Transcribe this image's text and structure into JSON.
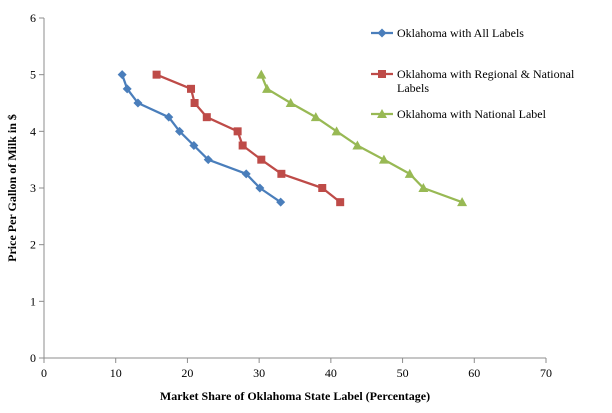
{
  "chart_data": {
    "type": "line",
    "title": "",
    "xlabel": "Market Share of Oklahoma State Label (Percentage)",
    "ylabel": "Price Per Gallon of Milk in $",
    "xlim": [
      0,
      70
    ],
    "ylim": [
      0,
      6
    ],
    "xticks": [
      0,
      10,
      20,
      30,
      40,
      50,
      60,
      70
    ],
    "yticks": [
      0,
      1,
      2,
      3,
      4,
      5,
      6
    ],
    "grid": false,
    "legend_position": "top-right",
    "series": [
      {
        "name": "Oklahoma with All Labels",
        "legend_lines": [
          "Oklahoma with All Labels"
        ],
        "color": "#4a7ebb",
        "marker": "diamond",
        "x": [
          10.9,
          11.6,
          13.1,
          17.4,
          18.9,
          20.9,
          22.9,
          28.2,
          30.1,
          33.0
        ],
        "y": [
          5.0,
          4.75,
          4.5,
          4.25,
          4.0,
          3.75,
          3.5,
          3.25,
          3.0,
          2.75
        ]
      },
      {
        "name": "Oklahoma with Regional & National Labels",
        "legend_lines": [
          "Oklahoma with Regional & National",
          "Labels"
        ],
        "color": "#be4b48",
        "marker": "square",
        "x": [
          15.7,
          20.5,
          21.0,
          22.7,
          27.0,
          27.7,
          30.3,
          33.1,
          38.8,
          41.3
        ],
        "y": [
          5.0,
          4.75,
          4.5,
          4.25,
          4.0,
          3.75,
          3.5,
          3.25,
          3.0,
          2.75
        ]
      },
      {
        "name": "Oklahoma with National Label",
        "legend_lines": [
          "Oklahoma with National Label"
        ],
        "color": "#98b954",
        "marker": "triangle",
        "x": [
          30.3,
          31.1,
          34.4,
          37.9,
          40.8,
          43.7,
          47.4,
          51.0,
          52.9,
          58.3
        ],
        "y": [
          5.0,
          4.75,
          4.5,
          4.25,
          4.0,
          3.75,
          3.5,
          3.25,
          3.0,
          2.75
        ]
      }
    ]
  }
}
